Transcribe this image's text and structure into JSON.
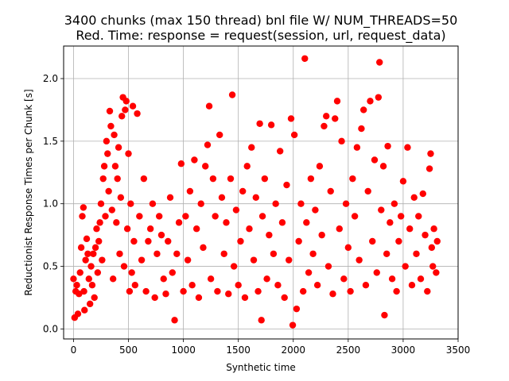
{
  "chart_data": {
    "type": "scatter",
    "title": "3400 chunks (max 150 thread) bnl file W/ NUM_THREADS=50",
    "subtitle": "Red. Time: response = request(session, url, request_data)",
    "xlabel": "Synthetic time",
    "ylabel": "Reductionist Response Times per Chunk [s]",
    "xlim": [
      -90,
      3500
    ],
    "ylim": [
      -0.08,
      2.26
    ],
    "xticks": [
      0,
      500,
      1000,
      1500,
      2000,
      2500,
      3000,
      3500
    ],
    "yticks": [
      0.0,
      0.5,
      1.0,
      1.5,
      2.0
    ],
    "x_tick_labels": [
      "0",
      "500",
      "1000",
      "1500",
      "2000",
      "2500",
      "3000",
      "3500"
    ],
    "y_tick_labels": [
      "0.0",
      "0.5",
      "1.0",
      "1.5",
      "2.0"
    ],
    "grid": true,
    "marker_color": "#ff0000",
    "series": [
      {
        "points": [
          [
            0,
            0.4
          ],
          [
            10,
            0.09
          ],
          [
            20,
            0.3
          ],
          [
            30,
            0.35
          ],
          [
            40,
            0.12
          ],
          [
            50,
            0.28
          ],
          [
            60,
            0.45
          ],
          [
            70,
            0.65
          ],
          [
            80,
            0.9
          ],
          [
            90,
            0.97
          ],
          [
            95,
            0.3
          ],
          [
            100,
            0.15
          ],
          [
            110,
            0.55
          ],
          [
            120,
            0.72
          ],
          [
            130,
            0.6
          ],
          [
            140,
            0.4
          ],
          [
            150,
            0.2
          ],
          [
            160,
            0.5
          ],
          [
            170,
            0.35
          ],
          [
            180,
            0.6
          ],
          [
            190,
            0.25
          ],
          [
            200,
            0.65
          ],
          [
            210,
            0.8
          ],
          [
            220,
            0.45
          ],
          [
            230,
            0.7
          ],
          [
            240,
            0.85
          ],
          [
            250,
            1.0
          ],
          [
            260,
            0.55
          ],
          [
            270,
            1.2
          ],
          [
            280,
            1.3
          ],
          [
            290,
            0.9
          ],
          [
            300,
            1.5
          ],
          [
            310,
            1.4
          ],
          [
            320,
            1.1
          ],
          [
            330,
            1.74
          ],
          [
            340,
            1.62
          ],
          [
            350,
            0.95
          ],
          [
            360,
            0.4
          ],
          [
            370,
            1.55
          ],
          [
            380,
            1.3
          ],
          [
            390,
            0.85
          ],
          [
            400,
            1.2
          ],
          [
            410,
            1.45
          ],
          [
            420,
            0.6
          ],
          [
            430,
            1.05
          ],
          [
            440,
            1.7
          ],
          [
            450,
            1.85
          ],
          [
            460,
            0.5
          ],
          [
            470,
            1.75
          ],
          [
            480,
            1.82
          ],
          [
            490,
            0.8
          ],
          [
            500,
            1.4
          ],
          [
            510,
            0.3
          ],
          [
            520,
            1.0
          ],
          [
            530,
            0.45
          ],
          [
            540,
            1.78
          ],
          [
            550,
            0.7
          ],
          [
            560,
            0.35
          ],
          [
            580,
            1.72
          ],
          [
            600,
            0.9
          ],
          [
            620,
            0.55
          ],
          [
            640,
            1.2
          ],
          [
            660,
            0.3
          ],
          [
            680,
            0.7
          ],
          [
            700,
            0.8
          ],
          [
            720,
            1.0
          ],
          [
            740,
            0.25
          ],
          [
            760,
            0.6
          ],
          [
            780,
            0.9
          ],
          [
            800,
            0.75
          ],
          [
            820,
            0.4
          ],
          [
            840,
            0.28
          ],
          [
            860,
            0.7
          ],
          [
            880,
            1.05
          ],
          [
            900,
            0.45
          ],
          [
            920,
            0.07
          ],
          [
            940,
            0.6
          ],
          [
            960,
            0.85
          ],
          [
            980,
            1.32
          ],
          [
            1000,
            0.3
          ],
          [
            1020,
            0.9
          ],
          [
            1040,
            0.55
          ],
          [
            1060,
            1.1
          ],
          [
            1080,
            0.35
          ],
          [
            1100,
            1.35
          ],
          [
            1120,
            0.8
          ],
          [
            1140,
            0.25
          ],
          [
            1160,
            1.0
          ],
          [
            1180,
            0.65
          ],
          [
            1200,
            1.3
          ],
          [
            1220,
            1.47
          ],
          [
            1235,
            1.78
          ],
          [
            1250,
            0.4
          ],
          [
            1270,
            1.2
          ],
          [
            1290,
            0.9
          ],
          [
            1310,
            0.3
          ],
          [
            1330,
            1.55
          ],
          [
            1350,
            1.05
          ],
          [
            1370,
            0.6
          ],
          [
            1390,
            0.85
          ],
          [
            1410,
            0.28
          ],
          [
            1430,
            1.2
          ],
          [
            1445,
            1.87
          ],
          [
            1460,
            0.5
          ],
          [
            1480,
            0.95
          ],
          [
            1500,
            0.35
          ],
          [
            1520,
            0.7
          ],
          [
            1540,
            1.1
          ],
          [
            1560,
            0.25
          ],
          [
            1580,
            1.3
          ],
          [
            1600,
            0.8
          ],
          [
            1620,
            1.45
          ],
          [
            1640,
            0.55
          ],
          [
            1660,
            1.05
          ],
          [
            1680,
            0.3
          ],
          [
            1695,
            1.64
          ],
          [
            1710,
            0.07
          ],
          [
            1720,
            0.9
          ],
          [
            1740,
            1.2
          ],
          [
            1760,
            0.4
          ],
          [
            1780,
            0.75
          ],
          [
            1800,
            1.63
          ],
          [
            1820,
            0.6
          ],
          [
            1840,
            1.0
          ],
          [
            1860,
            0.35
          ],
          [
            1880,
            1.42
          ],
          [
            1900,
            0.85
          ],
          [
            1920,
            0.25
          ],
          [
            1940,
            1.15
          ],
          [
            1960,
            0.55
          ],
          [
            1980,
            1.68
          ],
          [
            1995,
            0.03
          ],
          [
            2010,
            1.55
          ],
          [
            2030,
            0.16
          ],
          [
            2050,
            0.7
          ],
          [
            2070,
            1.0
          ],
          [
            2090,
            0.3
          ],
          [
            2105,
            2.16
          ],
          [
            2120,
            0.85
          ],
          [
            2140,
            0.45
          ],
          [
            2160,
            1.2
          ],
          [
            2180,
            0.6
          ],
          [
            2200,
            0.95
          ],
          [
            2220,
            0.35
          ],
          [
            2240,
            1.3
          ],
          [
            2260,
            0.75
          ],
          [
            2280,
            1.62
          ],
          [
            2300,
            1.7
          ],
          [
            2320,
            0.5
          ],
          [
            2340,
            1.1
          ],
          [
            2360,
            0.28
          ],
          [
            2380,
            1.68
          ],
          [
            2400,
            1.82
          ],
          [
            2420,
            0.8
          ],
          [
            2440,
            1.5
          ],
          [
            2460,
            0.4
          ],
          [
            2480,
            1.0
          ],
          [
            2500,
            0.65
          ],
          [
            2520,
            0.3
          ],
          [
            2540,
            1.2
          ],
          [
            2560,
            0.9
          ],
          [
            2580,
            1.45
          ],
          [
            2600,
            0.55
          ],
          [
            2620,
            1.6
          ],
          [
            2640,
            1.75
          ],
          [
            2660,
            0.35
          ],
          [
            2680,
            1.1
          ],
          [
            2700,
            1.82
          ],
          [
            2720,
            0.7
          ],
          [
            2740,
            1.35
          ],
          [
            2760,
            0.45
          ],
          [
            2775,
            1.85
          ],
          [
            2785,
            2.13
          ],
          [
            2800,
            0.95
          ],
          [
            2820,
            1.3
          ],
          [
            2830,
            0.11
          ],
          [
            2850,
            0.6
          ],
          [
            2860,
            1.46
          ],
          [
            2880,
            0.85
          ],
          [
            2900,
            0.4
          ],
          [
            2920,
            1.0
          ],
          [
            2940,
            0.3
          ],
          [
            2960,
            0.7
          ],
          [
            2980,
            0.9
          ],
          [
            3000,
            1.18
          ],
          [
            3020,
            0.5
          ],
          [
            3040,
            1.45
          ],
          [
            3060,
            0.8
          ],
          [
            3080,
            0.35
          ],
          [
            3100,
            1.05
          ],
          [
            3120,
            0.6
          ],
          [
            3140,
            0.9
          ],
          [
            3160,
            0.4
          ],
          [
            3180,
            1.08
          ],
          [
            3200,
            0.75
          ],
          [
            3220,
            0.3
          ],
          [
            3240,
            1.28
          ],
          [
            3250,
            1.4
          ],
          [
            3260,
            0.65
          ],
          [
            3270,
            0.5
          ],
          [
            3280,
            0.8
          ],
          [
            3300,
            0.45
          ],
          [
            3310,
            0.7
          ]
        ]
      }
    ]
  }
}
